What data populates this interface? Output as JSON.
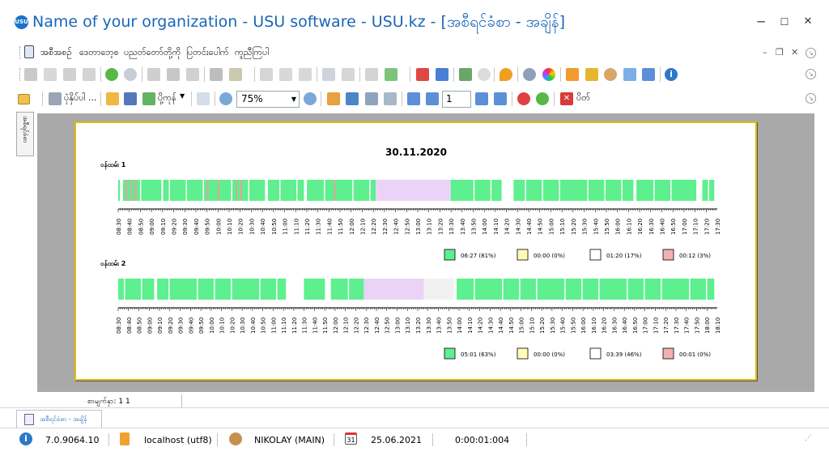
{
  "window": {
    "title": "Name of your organization - USU software - USU.kz - [အစီရင်ခံစာ - အချိန်]",
    "app_icon_text": "USU",
    "minimize": "─",
    "maximize": "☐",
    "close": "✕"
  },
  "menu": {
    "items": [
      "အစီအစဉ်",
      "ဒေတာဘေ့စ",
      "ပညတ်တော်တို့ကို",
      "ပြတင်းပေါက်",
      "ကူညီကြပါ"
    ]
  },
  "report_toolbar": {
    "print_label": "ပုံနှိပ်ပါ ...",
    "export_label": "ပို့ကုန်",
    "zoom_value": "75%",
    "page_value": "1",
    "close_label": "ပိတ်"
  },
  "side_strip": {
    "label": "အစီရင်ခံစာ"
  },
  "report": {
    "date": "30.11.2020",
    "blocks": [
      {
        "label": "ဝန်ထမ်း 1",
        "ticks": [
          "08:30",
          "08:40",
          "08:50",
          "09:00",
          "09:10",
          "09:20",
          "09:30",
          "09:40",
          "09:50",
          "10:00",
          "10:10",
          "10:20",
          "10:30",
          "10:40",
          "10:50",
          "11:00",
          "11:10",
          "11:20",
          "11:30",
          "11:40",
          "11:50",
          "12:00",
          "12:10",
          "12:20",
          "12:30",
          "12:40",
          "12:50",
          "13:00",
          "13:10",
          "13:20",
          "13:30",
          "13:40",
          "13:50",
          "14:00",
          "14:10",
          "14:20",
          "14:30",
          "14:40",
          "14:50",
          "15:00",
          "15:10",
          "15:20",
          "15:30",
          "15:40",
          "15:50",
          "16:00",
          "16:10",
          "16:20",
          "16:30",
          "16:40",
          "16:50",
          "17:00",
          "17:10",
          "17:20",
          "17:30"
        ],
        "legend": [
          {
            "color": "#5ef08e",
            "text": "06:27 (81%)"
          },
          {
            "color": "#fffcb8",
            "text": "00:00 (0%)"
          },
          {
            "color": "#ffffff",
            "text": "01:20 (17%)"
          },
          {
            "color": "#f4b0b0",
            "text": "00:12 (3%)"
          }
        ],
        "segments": [
          {
            "from": 0.0,
            "to": 0.003,
            "type": "active"
          },
          {
            "from": 0.008,
            "to": 0.072,
            "type": "active"
          },
          {
            "from": 0.075,
            "to": 0.245,
            "type": "active"
          },
          {
            "from": 0.25,
            "to": 0.31,
            "type": "active"
          },
          {
            "from": 0.315,
            "to": 0.43,
            "type": "active"
          },
          {
            "from": 0.43,
            "to": 0.555,
            "type": "idle"
          },
          {
            "from": 0.555,
            "to": 0.64,
            "type": "active"
          },
          {
            "from": 0.66,
            "to": 0.86,
            "type": "active"
          },
          {
            "from": 0.865,
            "to": 0.965,
            "type": "active"
          },
          {
            "from": 0.975,
            "to": 0.995,
            "type": "active"
          }
        ],
        "pink_marks": [
          0.012,
          0.021,
          0.028,
          0.148,
          0.166,
          0.196,
          0.204,
          0.36
        ]
      },
      {
        "label": "ဝန်ထမ်း 2",
        "ticks": [
          "08:30",
          "08:40",
          "08:50",
          "09:00",
          "09:10",
          "09:20",
          "09:30",
          "09:40",
          "09:50",
          "10:00",
          "10:10",
          "10:20",
          "10:30",
          "10:40",
          "10:50",
          "11:00",
          "11:10",
          "11:20",
          "11:30",
          "11:40",
          "11:50",
          "12:00",
          "12:10",
          "12:20",
          "12:30",
          "12:40",
          "12:50",
          "13:00",
          "13:10",
          "13:20",
          "13:30",
          "13:40",
          "13:50",
          "14:00",
          "14:10",
          "14:20",
          "14:30",
          "14:40",
          "14:50",
          "15:00",
          "15:10",
          "15:20",
          "15:30",
          "15:40",
          "15:50",
          "16:00",
          "16:10",
          "16:20",
          "16:30",
          "16:40",
          "16:50",
          "17:00",
          "17:10",
          "17:20",
          "17:30",
          "17:40",
          "17:50",
          "18:00",
          "18:10"
        ],
        "legend": [
          {
            "color": "#5ef08e",
            "text": "05:01 (63%)"
          },
          {
            "color": "#fffcb8",
            "text": "00:00 (0%)"
          },
          {
            "color": "#ffffff",
            "text": "03:39 (46%)"
          },
          {
            "color": "#f4b0b0",
            "text": "00:01 (0%)"
          }
        ],
        "segments": [
          {
            "from": 0.0,
            "to": 0.06,
            "type": "active"
          },
          {
            "from": 0.065,
            "to": 0.28,
            "type": "active"
          },
          {
            "from": 0.31,
            "to": 0.345,
            "type": "active"
          },
          {
            "from": 0.355,
            "to": 0.41,
            "type": "active"
          },
          {
            "from": 0.41,
            "to": 0.51,
            "type": "idle"
          },
          {
            "from": 0.51,
            "to": 0.56,
            "type": "gap"
          },
          {
            "from": 0.565,
            "to": 0.995,
            "type": "active"
          }
        ],
        "pink_marks": []
      }
    ]
  },
  "rows_info": "စာမျက်နှာ: 1 1",
  "tab": {
    "label": "အစီရင်ခံစာ - အချိန်"
  },
  "status": {
    "version": "7.0.9064.10",
    "database": "localhost (utf8)",
    "user": "NIKOLAY (MAIN)",
    "calendar_day": "31",
    "date": "25.06.2021",
    "timer": "0:00:01:004"
  },
  "colors": {
    "title": "#1766b8",
    "active": "#5ef08e",
    "idle": "#ebd3f7",
    "gap": "#f1f1f1",
    "paper_border": "#e6b800",
    "preview_bg": "#a9a9a9"
  }
}
